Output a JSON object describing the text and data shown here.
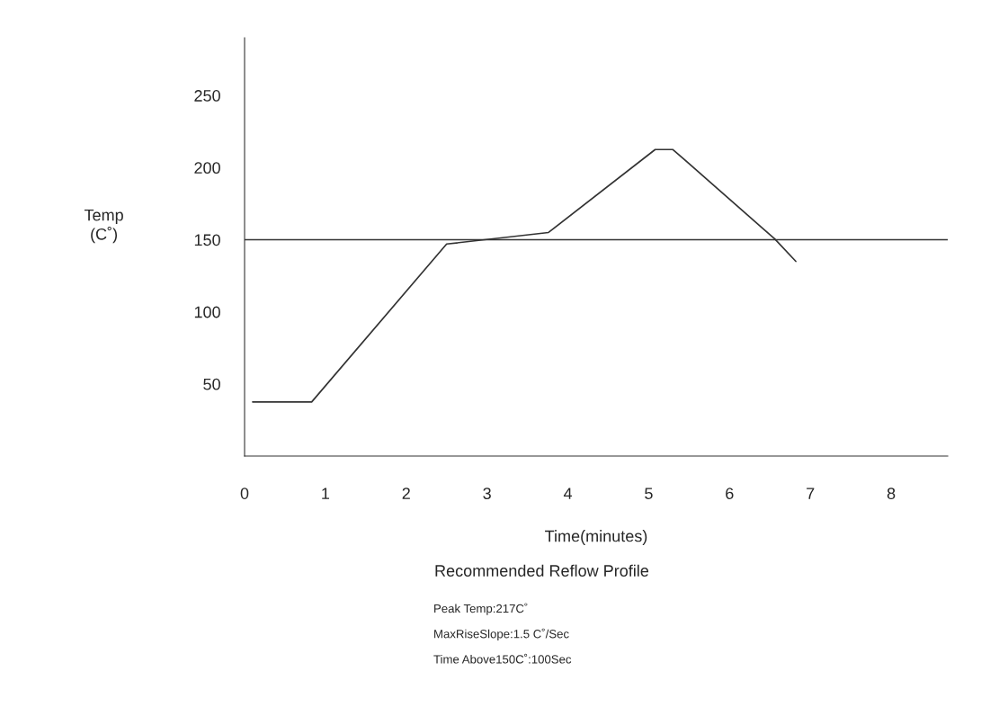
{
  "chart_data": {
    "type": "line",
    "title": "Recommended Reflow Profile",
    "xlabel": "Time(minutes)",
    "ylabel": "Temp\n(C˚)",
    "x": [
      0.1,
      0.83,
      2.5,
      3.76,
      5.08,
      5.3,
      6.56,
      6.82
    ],
    "series": [
      {
        "color": "#333333",
        "values": [
          37.5,
          37.5,
          147,
          155,
          212.5,
          212.5,
          150.5,
          135
        ]
      }
    ],
    "xlim": [
      0,
      8.7
    ],
    "ylim": [
      0,
      290
    ],
    "xticks": [
      0,
      1,
      2,
      3,
      4,
      5,
      6,
      7,
      8
    ],
    "yticks": [
      50,
      100,
      150,
      200,
      250
    ],
    "ref_lines": [
      {
        "axis": "y",
        "value": 150,
        "color": "#333333"
      }
    ],
    "annotations": [
      "Peak Temp:217C˚",
      "MaxRiseSlope:1.5 C˚/Sec",
      "Time Above150C˚:100Sec"
    ],
    "grid": false,
    "legend": false,
    "marker": "none",
    "line_style": "solid"
  }
}
